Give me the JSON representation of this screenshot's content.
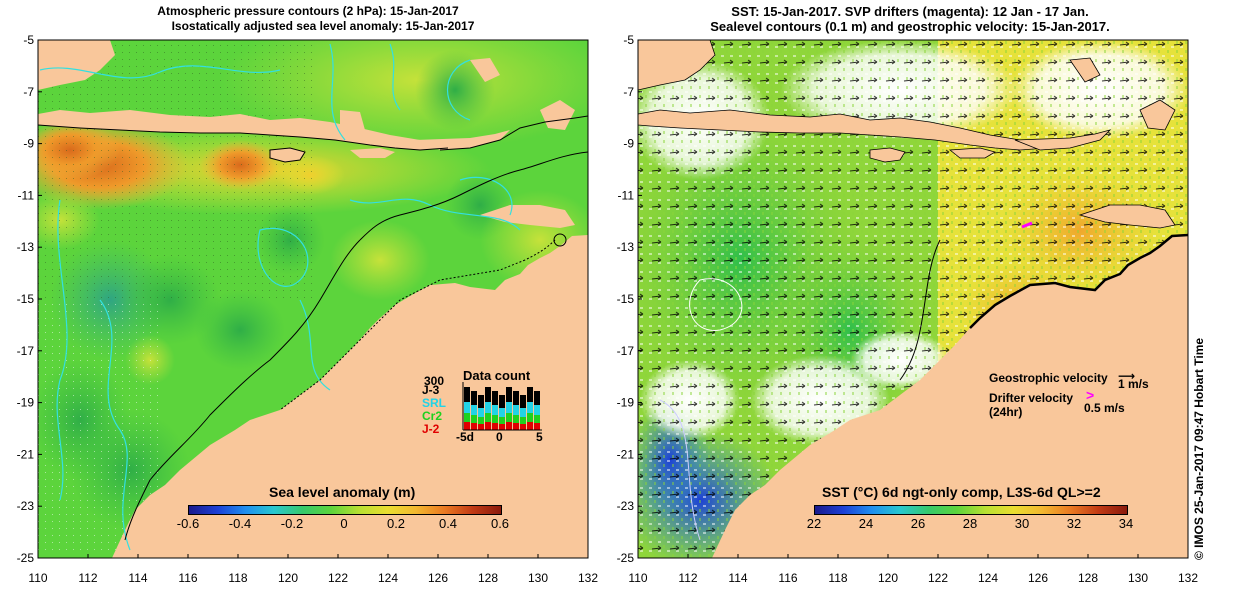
{
  "left_panel": {
    "title_line1": "Atmospheric pressure contours (2 hPa): 15-Jan-2017",
    "title_line2": "Isostatically adjusted sea level anomaly: 15-Jan-2017",
    "y_ticks": [
      "-5",
      "-7",
      "-9",
      "-11",
      "-13",
      "-15",
      "-17",
      "-19",
      "-21",
      "-23",
      "-25"
    ],
    "x_ticks": [
      "110",
      "112",
      "114",
      "116",
      "118",
      "120",
      "122",
      "124",
      "126",
      "128",
      "130",
      "132"
    ],
    "colorbar_label": "Sea level anomaly (m)",
    "colorbar_ticks": [
      "-0.6",
      "-0.4",
      "-0.2",
      "0",
      "0.2",
      "0.4",
      "0.6"
    ],
    "inset": {
      "title": "Data count",
      "y_top": "300",
      "series_labels": [
        "J-3",
        "SRL",
        "Cr2",
        "J-2"
      ],
      "series_colors": [
        "#000000",
        "#22d3e6",
        "#1fd11f",
        "#e00000"
      ],
      "x_labels": [
        "-5d",
        "0",
        "5"
      ]
    }
  },
  "right_panel": {
    "title_line1": "SST: 15-Jan-2017. SVP drifters (magenta): 12 Jan - 17 Jan.",
    "title_line2": "Sealevel contours (0.1 m) and geostrophic velocity: 15-Jan-2017.",
    "y_ticks": [
      "-5",
      "-7",
      "-9",
      "-11",
      "-13",
      "-15",
      "-17",
      "-19",
      "-21",
      "-23",
      "-25"
    ],
    "x_ticks": [
      "110",
      "112",
      "114",
      "116",
      "118",
      "120",
      "122",
      "124",
      "126",
      "128",
      "130",
      "132"
    ],
    "legend": {
      "geostrophic_label": "Geostrophic velocity",
      "geostrophic_scale": "1 m/s",
      "drifter_label": "Drifter velocity",
      "drifter_sub": "(24hr)",
      "drifter_scale": "0.5 m/s",
      "drifter_color": "#ff00ff"
    },
    "colorbar_label": "SST (°C) 6d ngt-only comp, L3S-6d QL>=2",
    "colorbar_ticks": [
      "22",
      "24",
      "26",
      "28",
      "30",
      "32",
      "34"
    ]
  },
  "side_credit": "©  IMOS 25-Jan-2017 09:47 Hobart Time",
  "colors": {
    "land": "#f9c79b",
    "contour_cyan": "#33e0e0",
    "sla_base": "#5cd43c",
    "sst_base": "#e7e63a"
  }
}
